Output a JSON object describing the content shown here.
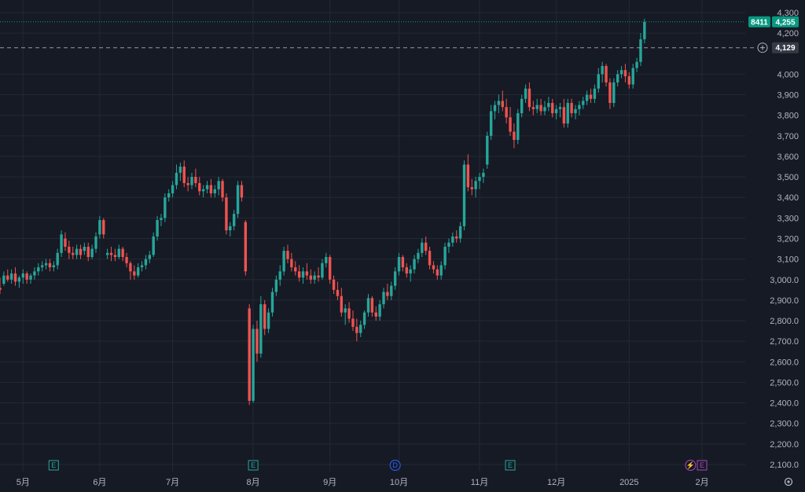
{
  "chart_data": {
    "type": "candlestick",
    "ylim": [
      2080,
      4310
    ],
    "grid": true,
    "colors": {
      "up": "#26a69a",
      "down": "#ef5350",
      "background": "#161a25",
      "grid": "#232835",
      "axis_text": "#b2b5be",
      "crosshair": "#9598a1",
      "price_badge": "#089981"
    },
    "y_ticks": [
      {
        "value": 4300,
        "label": "4,300"
      },
      {
        "value": 4200,
        "label": "4,200"
      },
      {
        "value": 4000,
        "label": "4,000"
      },
      {
        "value": 3900,
        "label": "3,900"
      },
      {
        "value": 3800,
        "label": "3,800"
      },
      {
        "value": 3700,
        "label": "3,700"
      },
      {
        "value": 3600,
        "label": "3,600"
      },
      {
        "value": 3500,
        "label": "3,500"
      },
      {
        "value": 3400,
        "label": "3,400"
      },
      {
        "value": 3300,
        "label": "3,300"
      },
      {
        "value": 3200,
        "label": "3,200"
      },
      {
        "value": 3100,
        "label": "3,100"
      },
      {
        "value": 3000,
        "label": "3,000.0"
      },
      {
        "value": 2900,
        "label": "2,900.0"
      },
      {
        "value": 2800,
        "label": "2,800.0"
      },
      {
        "value": 2700,
        "label": "2,700.0"
      },
      {
        "value": 2600,
        "label": "2,600.0"
      },
      {
        "value": 2500,
        "label": "2,500.0"
      },
      {
        "value": 2400,
        "label": "2,400.0"
      },
      {
        "value": 2300,
        "label": "2,300.0"
      },
      {
        "value": 2200,
        "label": "2,200.0"
      },
      {
        "value": 2100,
        "label": "2,100.0"
      }
    ],
    "x_ticks": [
      {
        "index": 6,
        "label": "5月"
      },
      {
        "index": 26,
        "label": "6月"
      },
      {
        "index": 45,
        "label": "7月"
      },
      {
        "index": 66,
        "label": "8月"
      },
      {
        "index": 86,
        "label": "9月"
      },
      {
        "index": 104,
        "label": "10月"
      },
      {
        "index": 125,
        "label": "11月"
      },
      {
        "index": 145,
        "label": "12月"
      },
      {
        "index": 164,
        "label": "2025"
      },
      {
        "index": 183,
        "label": "2月"
      }
    ],
    "last_price": {
      "value": 4255,
      "label": "4,255",
      "symbol": "8411"
    },
    "crosshair_price": {
      "value": 4129,
      "label": "4,129"
    },
    "events": [
      {
        "index": 14,
        "letter": "E",
        "type": "earnings"
      },
      {
        "index": 66,
        "letter": "E",
        "type": "earnings"
      },
      {
        "index": 103,
        "letter": "D",
        "type": "dividend"
      },
      {
        "index": 133,
        "letter": "E",
        "type": "earnings"
      },
      {
        "index": 180,
        "letter": "⚡",
        "type": "split"
      },
      {
        "index": 183,
        "letter": "E",
        "type": "earnings-upcoming"
      }
    ],
    "candles": [
      [
        2960,
        3010,
        2930,
        2950
      ],
      [
        2980,
        3040,
        2970,
        3020
      ],
      [
        3020,
        3050,
        2990,
        3000
      ],
      [
        3000,
        3050,
        2980,
        3030
      ],
      [
        3030,
        3060,
        2970,
        2990
      ],
      [
        2990,
        3020,
        2960,
        3010
      ],
      [
        3010,
        3050,
        2980,
        3030
      ],
      [
        3030,
        3040,
        2980,
        3000
      ],
      [
        3000,
        3030,
        2980,
        3020
      ],
      [
        3020,
        3060,
        3000,
        3040
      ],
      [
        3040,
        3080,
        3020,
        3060
      ],
      [
        3060,
        3090,
        3040,
        3070
      ],
      [
        3070,
        3100,
        3050,
        3080
      ],
      [
        3080,
        3100,
        3040,
        3060
      ],
      [
        3060,
        3090,
        3040,
        3070
      ],
      [
        3070,
        3150,
        3050,
        3130
      ],
      [
        3130,
        3240,
        3110,
        3220
      ],
      [
        3200,
        3230,
        3140,
        3160
      ],
      [
        3160,
        3190,
        3100,
        3130
      ],
      [
        3130,
        3160,
        3100,
        3120
      ],
      [
        3120,
        3170,
        3100,
        3150
      ],
      [
        3150,
        3170,
        3100,
        3120
      ],
      [
        3140,
        3180,
        3120,
        3160
      ],
      [
        3160,
        3180,
        3090,
        3110
      ],
      [
        3110,
        3170,
        3100,
        3150
      ],
      [
        3150,
        3230,
        3130,
        3210
      ],
      [
        3220,
        3310,
        3200,
        3290
      ],
      [
        3290,
        3300,
        3200,
        3220
      ],
      [
        3120,
        3150,
        3100,
        3130
      ],
      [
        3130,
        3160,
        3090,
        3120
      ],
      [
        3120,
        3150,
        3090,
        3110
      ],
      [
        3110,
        3170,
        3100,
        3150
      ],
      [
        3150,
        3160,
        3090,
        3110
      ],
      [
        3110,
        3130,
        3060,
        3080
      ],
      [
        3080,
        3090,
        3000,
        3040
      ],
      [
        3040,
        3070,
        3000,
        3020
      ],
      [
        3020,
        3080,
        3010,
        3060
      ],
      [
        3060,
        3090,
        3040,
        3070
      ],
      [
        3070,
        3120,
        3050,
        3100
      ],
      [
        3100,
        3140,
        3080,
        3120
      ],
      [
        3120,
        3230,
        3110,
        3210
      ],
      [
        3210,
        3310,
        3190,
        3290
      ],
      [
        3290,
        3320,
        3260,
        3300
      ],
      [
        3300,
        3420,
        3280,
        3400
      ],
      [
        3400,
        3440,
        3380,
        3420
      ],
      [
        3420,
        3480,
        3400,
        3460
      ],
      [
        3460,
        3560,
        3440,
        3520
      ],
      [
        3520,
        3570,
        3480,
        3550
      ],
      [
        3550,
        3580,
        3450,
        3470
      ],
      [
        3470,
        3500,
        3430,
        3460
      ],
      [
        3460,
        3520,
        3440,
        3500
      ],
      [
        3500,
        3540,
        3450,
        3470
      ],
      [
        3470,
        3500,
        3410,
        3430
      ],
      [
        3430,
        3460,
        3400,
        3440
      ],
      [
        3440,
        3480,
        3420,
        3460
      ],
      [
        3460,
        3490,
        3400,
        3420
      ],
      [
        3420,
        3460,
        3400,
        3440
      ],
      [
        3440,
        3500,
        3410,
        3480
      ],
      [
        3480,
        3490,
        3380,
        3400
      ],
      [
        3400,
        3420,
        3220,
        3240
      ],
      [
        3240,
        3280,
        3210,
        3260
      ],
      [
        3260,
        3340,
        3240,
        3320
      ],
      [
        3320,
        3480,
        3300,
        3460
      ],
      [
        3460,
        3480,
        3380,
        3400
      ],
      [
        3280,
        3290,
        3020,
        3040
      ],
      [
        2860,
        2880,
        2390,
        2410
      ],
      [
        2410,
        2780,
        2400,
        2760
      ],
      [
        2760,
        2800,
        2600,
        2640
      ],
      [
        2640,
        2920,
        2620,
        2880
      ],
      [
        2880,
        2900,
        2730,
        2760
      ],
      [
        2760,
        2860,
        2740,
        2840
      ],
      [
        2840,
        2960,
        2820,
        2940
      ],
      [
        2940,
        3020,
        2920,
        3000
      ],
      [
        3000,
        3070,
        2970,
        3040
      ],
      [
        3040,
        3160,
        3020,
        3140
      ],
      [
        3140,
        3170,
        3080,
        3100
      ],
      [
        3100,
        3130,
        3040,
        3060
      ],
      [
        3060,
        3090,
        3020,
        3040
      ],
      [
        3040,
        3070,
        2990,
        3010
      ],
      [
        3010,
        3060,
        2980,
        3040
      ],
      [
        3040,
        3080,
        3000,
        3020
      ],
      [
        3020,
        3050,
        2980,
        3000
      ],
      [
        3000,
        3040,
        2980,
        3020
      ],
      [
        3020,
        3060,
        2990,
        3010
      ],
      [
        3010,
        3100,
        3000,
        3080
      ],
      [
        3080,
        3130,
        3060,
        3110
      ],
      [
        3110,
        3120,
        2980,
        3000
      ],
      [
        3000,
        3020,
        2930,
        2950
      ],
      [
        2950,
        2990,
        2900,
        2920
      ],
      [
        2920,
        2960,
        2820,
        2840
      ],
      [
        2840,
        2880,
        2780,
        2860
      ],
      [
        2860,
        2890,
        2790,
        2810
      ],
      [
        2810,
        2850,
        2750,
        2770
      ],
      [
        2770,
        2810,
        2700,
        2740
      ],
      [
        2740,
        2800,
        2720,
        2780
      ],
      [
        2780,
        2850,
        2760,
        2840
      ],
      [
        2840,
        2930,
        2820,
        2910
      ],
      [
        2910,
        2920,
        2820,
        2840
      ],
      [
        2840,
        2870,
        2800,
        2820
      ],
      [
        2820,
        2900,
        2800,
        2880
      ],
      [
        2880,
        2960,
        2860,
        2940
      ],
      [
        2940,
        2980,
        2900,
        2920
      ],
      [
        2920,
        2990,
        2900,
        2970
      ],
      [
        2970,
        3060,
        2950,
        3040
      ],
      [
        3040,
        3130,
        3020,
        3110
      ],
      [
        3110,
        3120,
        3040,
        3060
      ],
      [
        3060,
        3080,
        3010,
        3030
      ],
      [
        3030,
        3070,
        2990,
        3050
      ],
      [
        3050,
        3120,
        3030,
        3100
      ],
      [
        3100,
        3150,
        3080,
        3130
      ],
      [
        3130,
        3200,
        3110,
        3180
      ],
      [
        3180,
        3210,
        3120,
        3140
      ],
      [
        3140,
        3160,
        3050,
        3070
      ],
      [
        3070,
        3090,
        3030,
        3050
      ],
      [
        3050,
        3070,
        3000,
        3020
      ],
      [
        3020,
        3090,
        3000,
        3070
      ],
      [
        3070,
        3180,
        3050,
        3160
      ],
      [
        3160,
        3200,
        3130,
        3180
      ],
      [
        3180,
        3230,
        3160,
        3210
      ],
      [
        3210,
        3240,
        3180,
        3200
      ],
      [
        3200,
        3280,
        3180,
        3260
      ],
      [
        3260,
        3580,
        3240,
        3560
      ],
      [
        3560,
        3610,
        3430,
        3450
      ],
      [
        3450,
        3490,
        3410,
        3440
      ],
      [
        3440,
        3500,
        3400,
        3480
      ],
      [
        3480,
        3520,
        3440,
        3500
      ],
      [
        3500,
        3540,
        3470,
        3520
      ],
      [
        3560,
        3720,
        3540,
        3700
      ],
      [
        3700,
        3850,
        3680,
        3820
      ],
      [
        3820,
        3870,
        3780,
        3850
      ],
      [
        3850,
        3900,
        3810,
        3870
      ],
      [
        3870,
        3920,
        3820,
        3840
      ],
      [
        3840,
        3880,
        3760,
        3790
      ],
      [
        3790,
        3840,
        3700,
        3720
      ],
      [
        3720,
        3760,
        3640,
        3680
      ],
      [
        3680,
        3830,
        3660,
        3810
      ],
      [
        3810,
        3900,
        3790,
        3880
      ],
      [
        3880,
        3950,
        3860,
        3930
      ],
      [
        3930,
        3960,
        3820,
        3840
      ],
      [
        3840,
        3870,
        3800,
        3830
      ],
      [
        3830,
        3880,
        3810,
        3850
      ],
      [
        3850,
        3880,
        3800,
        3820
      ],
      [
        3820,
        3870,
        3800,
        3840
      ],
      [
        3840,
        3890,
        3820,
        3860
      ],
      [
        3860,
        3880,
        3790,
        3810
      ],
      [
        3810,
        3850,
        3780,
        3830
      ],
      [
        3830,
        3860,
        3790,
        3840
      ],
      [
        3840,
        3880,
        3740,
        3760
      ],
      [
        3760,
        3880,
        3740,
        3860
      ],
      [
        3860,
        3880,
        3790,
        3810
      ],
      [
        3810,
        3850,
        3780,
        3830
      ],
      [
        3830,
        3870,
        3800,
        3850
      ],
      [
        3850,
        3890,
        3830,
        3870
      ],
      [
        3870,
        3920,
        3850,
        3900
      ],
      [
        3900,
        3930,
        3860,
        3880
      ],
      [
        3880,
        3950,
        3860,
        3930
      ],
      [
        3930,
        4030,
        3910,
        4000
      ],
      [
        4000,
        4060,
        3960,
        4040
      ],
      [
        4040,
        4050,
        3940,
        3960
      ],
      [
        3960,
        3980,
        3830,
        3860
      ],
      [
        3860,
        3980,
        3840,
        3960
      ],
      [
        3960,
        4020,
        3940,
        4000
      ],
      [
        4000,
        4040,
        3980,
        4020
      ],
      [
        4020,
        4050,
        3960,
        3990
      ],
      [
        3990,
        4010,
        3930,
        3950
      ],
      [
        3950,
        4050,
        3930,
        4030
      ],
      [
        4030,
        4080,
        4010,
        4060
      ],
      [
        4060,
        4200,
        4040,
        4170
      ],
      [
        4170,
        4270,
        4150,
        4255
      ]
    ]
  }
}
